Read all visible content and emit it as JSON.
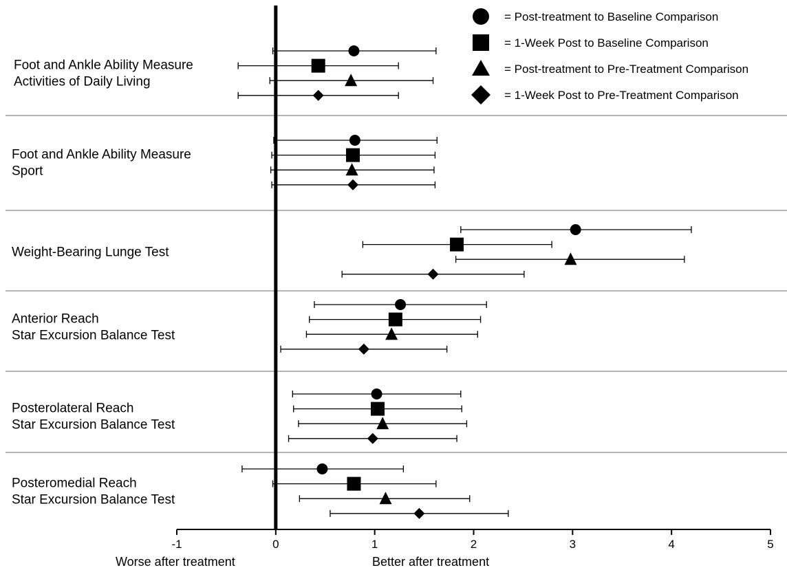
{
  "chart_data": {
    "type": "forest",
    "xlim": [
      -1,
      5
    ],
    "x_ticks": [
      "-1",
      "0",
      "1",
      "2",
      "3",
      "4",
      "5"
    ],
    "x_direction_labels": {
      "negative": "Worse after treatment",
      "positive": "Better after treatment"
    },
    "legend": [
      {
        "marker": "circle",
        "label": "= Post-treatment to Baseline Comparison"
      },
      {
        "marker": "square",
        "label": "= 1-Week Post to Baseline Comparison"
      },
      {
        "marker": "triangle",
        "label": "= Post-treatment to Pre-Treatment Comparison"
      },
      {
        "marker": "diamond",
        "label": "= 1-Week Post to Pre-Treatment Comparison"
      }
    ],
    "legend_position": "top-right",
    "groups": [
      {
        "label_lines": [
          "Foot and Ankle Ability Measure",
          "Activities of Daily Living"
        ],
        "points": [
          {
            "marker": "circle",
            "est": 0.79,
            "lo": -0.03,
            "hi": 1.62
          },
          {
            "marker": "square",
            "est": 0.43,
            "lo": -0.38,
            "hi": 1.24
          },
          {
            "marker": "triangle",
            "est": 0.76,
            "lo": -0.06,
            "hi": 1.59
          },
          {
            "marker": "diamond",
            "est": 0.43,
            "lo": -0.38,
            "hi": 1.24
          }
        ]
      },
      {
        "label_lines": [
          "Foot and Ankle Ability Measure",
          "Sport"
        ],
        "points": [
          {
            "marker": "circle",
            "est": 0.8,
            "lo": -0.02,
            "hi": 1.63
          },
          {
            "marker": "square",
            "est": 0.78,
            "lo": -0.04,
            "hi": 1.61
          },
          {
            "marker": "triangle",
            "est": 0.77,
            "lo": -0.05,
            "hi": 1.6
          },
          {
            "marker": "diamond",
            "est": 0.78,
            "lo": -0.04,
            "hi": 1.61
          }
        ]
      },
      {
        "label_lines": [
          "Weight-Bearing Lunge Test"
        ],
        "points": [
          {
            "marker": "circle",
            "est": 3.03,
            "lo": 1.87,
            "hi": 4.2
          },
          {
            "marker": "square",
            "est": 1.83,
            "lo": 0.88,
            "hi": 2.79
          },
          {
            "marker": "triangle",
            "est": 2.98,
            "lo": 1.82,
            "hi": 4.13
          },
          {
            "marker": "diamond",
            "est": 1.59,
            "lo": 0.67,
            "hi": 2.51
          }
        ]
      },
      {
        "label_lines": [
          "Anterior Reach",
          "Star Excursion Balance Test"
        ],
        "points": [
          {
            "marker": "circle",
            "est": 1.26,
            "lo": 0.39,
            "hi": 2.13
          },
          {
            "marker": "square",
            "est": 1.21,
            "lo": 0.34,
            "hi": 2.07
          },
          {
            "marker": "triangle",
            "est": 1.17,
            "lo": 0.31,
            "hi": 2.04
          },
          {
            "marker": "diamond",
            "est": 0.89,
            "lo": 0.05,
            "hi": 1.73
          }
        ]
      },
      {
        "label_lines": [
          "Posterolateral Reach",
          "Star Excursion Balance Test"
        ],
        "points": [
          {
            "marker": "circle",
            "est": 1.02,
            "lo": 0.17,
            "hi": 1.87
          },
          {
            "marker": "square",
            "est": 1.03,
            "lo": 0.18,
            "hi": 1.88
          },
          {
            "marker": "triangle",
            "est": 1.08,
            "lo": 0.23,
            "hi": 1.93
          },
          {
            "marker": "diamond",
            "est": 0.98,
            "lo": 0.13,
            "hi": 1.83
          }
        ]
      },
      {
        "label_lines": [
          "Posteromedial Reach",
          "Star Excursion Balance Test"
        ],
        "points": [
          {
            "marker": "circle",
            "est": 0.47,
            "lo": -0.34,
            "hi": 1.29
          },
          {
            "marker": "square",
            "est": 0.79,
            "lo": -0.03,
            "hi": 1.62
          },
          {
            "marker": "triangle",
            "est": 1.11,
            "lo": 0.24,
            "hi": 1.96
          },
          {
            "marker": "diamond",
            "est": 1.45,
            "lo": 0.55,
            "hi": 2.35
          }
        ]
      }
    ]
  }
}
